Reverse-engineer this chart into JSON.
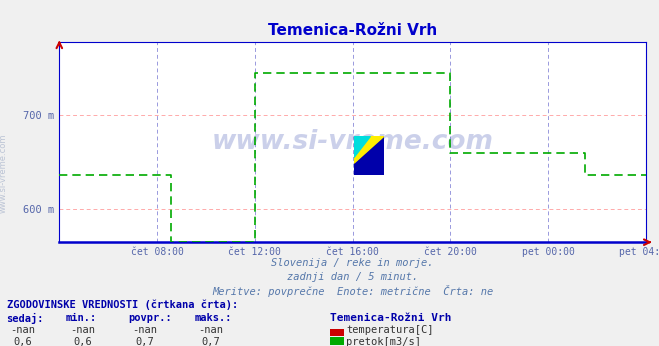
{
  "title": "Temenica-Rožni Vrh",
  "title_color": "#0000cc",
  "bg_color": "#f0f0f0",
  "plot_bg_color": "#ffffff",
  "grid_color_vertical": "#9999dd",
  "grid_color_horizontal": "#ffaaaa",
  "axis_color": "#0000cc",
  "xlim": [
    0,
    288
  ],
  "ylim": [
    565,
    778
  ],
  "yticks": [
    600,
    700
  ],
  "ytick_labels": [
    "600 m",
    "700 m"
  ],
  "xticks": [
    48,
    96,
    144,
    192,
    240,
    288
  ],
  "xtick_labels": [
    "čet 08:00",
    "čet 12:00",
    "čet 16:00",
    "čet 20:00",
    "pet 00:00",
    "pet 04:00"
  ],
  "watermark": "www.si-vreme.com",
  "subtitle1": "Slovenija / reke in morje.",
  "subtitle2": "zadnji dan / 5 minut.",
  "subtitle3": "Meritve: povrprečne  Enote: metrične  Črta: ne",
  "legend_title": "ZGODOVINSKE VREDNOSTI (črtkana črta):",
  "col_headers": [
    "sedaj:",
    "min.:",
    "povpr.:",
    "maks.:"
  ],
  "row1_vals": [
    "-nan",
    "-nan",
    "-nan",
    "-nan"
  ],
  "row2_vals": [
    "0,6",
    "0,6",
    "0,7",
    "0,7"
  ],
  "legend_station": "Temenica-Rožni Vrh",
  "legend_label1": "temperatura[C]",
  "legend_label2": "pretok[m3/s]",
  "legend_color1": "#cc0000",
  "legend_color2": "#00aa00",
  "flow_line_color": "#00aa00",
  "flow_x": [
    0,
    55,
    55,
    96,
    96,
    192,
    192,
    210,
    210,
    258,
    258,
    288
  ],
  "flow_y": [
    636,
    636,
    565,
    565,
    745,
    745,
    660,
    660,
    660,
    660,
    636,
    636
  ],
  "subtitle3_corrected": "Meritve: povprečne  Enote: metrične  Črta: ne"
}
